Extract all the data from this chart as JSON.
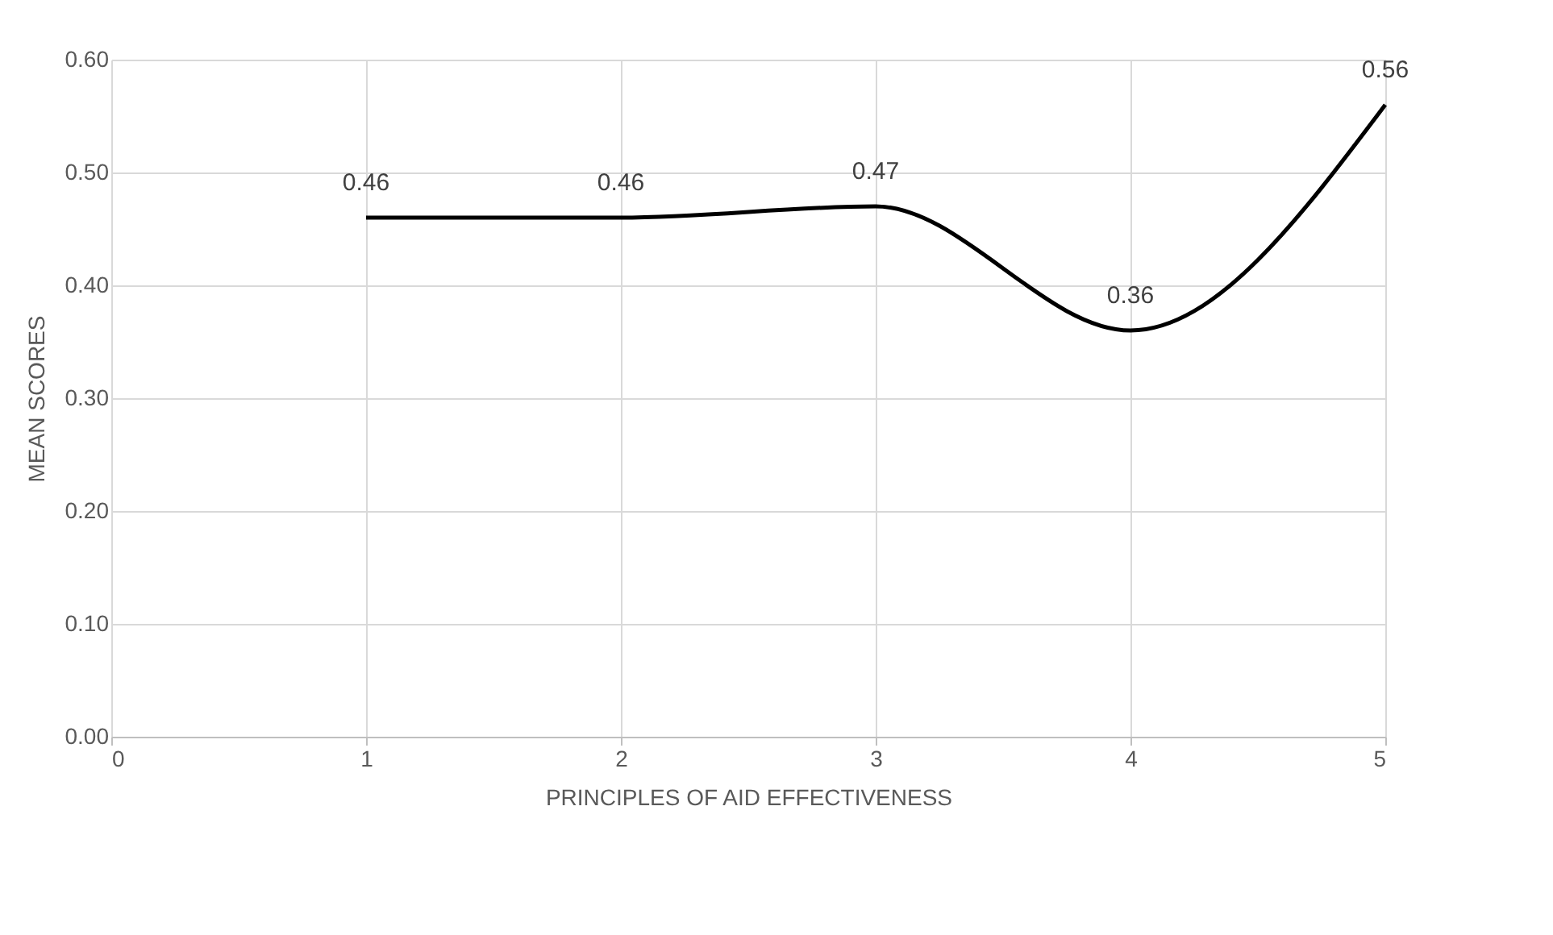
{
  "chart_data": {
    "type": "line",
    "xlabel": "PRINCIPLES OF AID EFFECTIVENESS",
    "ylabel": "MEAN SCORES",
    "x": [
      1,
      2,
      3,
      4,
      5
    ],
    "series": [
      {
        "color": "#000000",
        "values": [
          0.46,
          0.46,
          0.47,
          0.36,
          0.56
        ]
      }
    ],
    "xlim": [
      0,
      5
    ],
    "xticks": [
      0,
      1,
      2,
      3,
      4,
      5
    ],
    "ylim": [
      0,
      0.6
    ],
    "yticks": [
      {
        "value": 0,
        "label": "0.00"
      },
      {
        "value": 0.1,
        "label": "0.10"
      },
      {
        "value": 0.2,
        "label": "0.20"
      },
      {
        "value": 0.3,
        "label": "0.30"
      },
      {
        "value": 0.4,
        "label": "0.40"
      },
      {
        "value": 0.5,
        "label": "0.50"
      },
      {
        "value": 0.6,
        "label": "0.60"
      }
    ],
    "grid": true,
    "data_labels": true,
    "marker": "none",
    "line_style": "solid"
  }
}
